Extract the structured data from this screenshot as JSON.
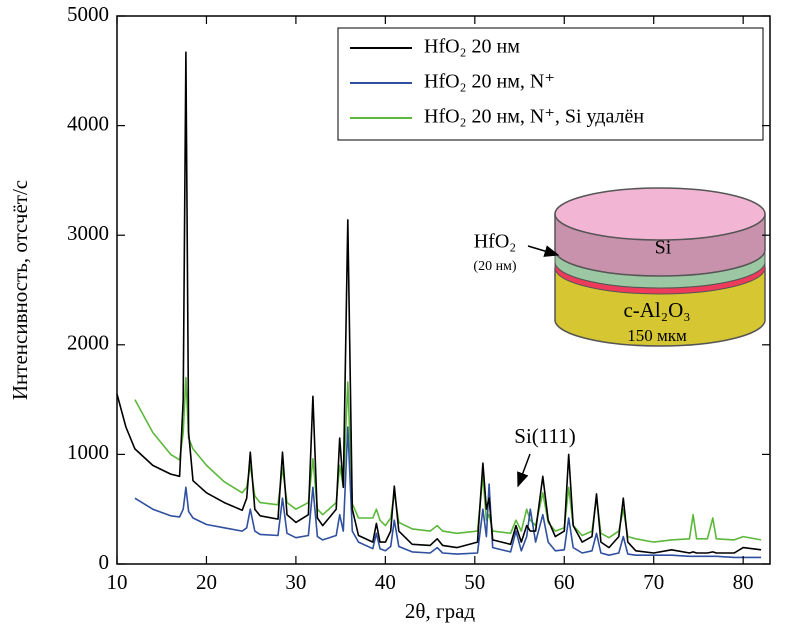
{
  "chart_data": {
    "type": "line",
    "x_label": "2θ, град",
    "y_label": "Интенсивность, отсчёт/с",
    "xlim": [
      10,
      83
    ],
    "xticks": [
      10,
      20,
      30,
      40,
      50,
      60,
      70,
      80
    ],
    "ylim": [
      0,
      5000
    ],
    "yticks": [
      0,
      1000,
      2000,
      3000,
      4000,
      5000
    ],
    "legend": "upper right",
    "annotation": "Si(111)",
    "inset": {
      "layer_top": "Si",
      "layer_film": "HfO₂",
      "layer_film_thickness": "(20 нм)",
      "substrate": "c-Al₂O₃",
      "substrate_thickness": "150 мкм"
    },
    "x": [
      10,
      11,
      12,
      14,
      16,
      17,
      17.4,
      17.7,
      18,
      18.5,
      20,
      22,
      24,
      24.5,
      24.9,
      25.4,
      26,
      28,
      28.5,
      29,
      30,
      31.4,
      31.9,
      32.4,
      33,
      34.5,
      34.9,
      35.3,
      35.8,
      36.3,
      37,
      38.6,
      39,
      39.4,
      40,
      40.6,
      41,
      41.5,
      43,
      45,
      45.8,
      46.4,
      48,
      50.3,
      50.9,
      51.3,
      51.6,
      52,
      54,
      54.6,
      55.2,
      55.8,
      56.2,
      56.8,
      57.6,
      58.2,
      59,
      60,
      60.5,
      61,
      62,
      63.1,
      63.6,
      64.1,
      65,
      66.1,
      66.6,
      67.1,
      68,
      70,
      72,
      74,
      74.4,
      74.8,
      76,
      76.6,
      77,
      79,
      80,
      82
    ],
    "series": [
      {
        "name": "HfO₂ 20 нм",
        "color": "#000000",
        "values": [
          1550,
          1250,
          1050,
          900,
          820,
          800,
          1500,
          4670,
          1200,
          760,
          650,
          560,
          490,
          600,
          1020,
          500,
          440,
          410,
          1020,
          450,
          380,
          450,
          1530,
          420,
          350,
          500,
          1150,
          700,
          3140,
          500,
          260,
          200,
          370,
          200,
          200,
          300,
          710,
          300,
          180,
          170,
          230,
          170,
          150,
          200,
          920,
          500,
          600,
          220,
          180,
          350,
          200,
          350,
          300,
          300,
          800,
          400,
          250,
          300,
          1000,
          350,
          200,
          250,
          640,
          200,
          150,
          250,
          600,
          200,
          120,
          100,
          130,
          100,
          110,
          100,
          100,
          110,
          100,
          100,
          150,
          130
        ]
      },
      {
        "name": "HfO₂ 20 нм, N⁺",
        "color": "#2f4f9f",
        "values": [
          null,
          null,
          600,
          500,
          440,
          430,
          500,
          700,
          480,
          420,
          360,
          330,
          300,
          330,
          500,
          300,
          270,
          260,
          600,
          280,
          240,
          260,
          700,
          250,
          220,
          260,
          450,
          300,
          1250,
          300,
          200,
          140,
          280,
          140,
          120,
          160,
          400,
          160,
          110,
          100,
          150,
          100,
          90,
          100,
          500,
          250,
          730,
          150,
          110,
          300,
          120,
          250,
          500,
          200,
          450,
          200,
          120,
          130,
          420,
          150,
          100,
          120,
          280,
          100,
          80,
          100,
          250,
          90,
          80,
          80,
          80,
          70,
          70,
          70,
          70,
          70,
          70,
          60,
          60,
          60
        ]
      },
      {
        "name": "HfO₂ 20 нм, N⁺, Si удалён",
        "color": "#5cb83a",
        "values": [
          null,
          null,
          1500,
          1200,
          1000,
          950,
          1200,
          1700,
          1150,
          1050,
          900,
          750,
          650,
          700,
          900,
          620,
          560,
          540,
          880,
          560,
          500,
          560,
          960,
          500,
          450,
          560,
          900,
          700,
          1660,
          550,
          420,
          420,
          500,
          400,
          350,
          420,
          650,
          380,
          320,
          300,
          350,
          300,
          280,
          300,
          800,
          400,
          450,
          300,
          280,
          400,
          300,
          500,
          400,
          350,
          650,
          380,
          300,
          330,
          700,
          350,
          260,
          300,
          600,
          280,
          240,
          300,
          500,
          250,
          230,
          200,
          220,
          230,
          450,
          230,
          230,
          420,
          230,
          220,
          250,
          220
        ]
      }
    ]
  }
}
